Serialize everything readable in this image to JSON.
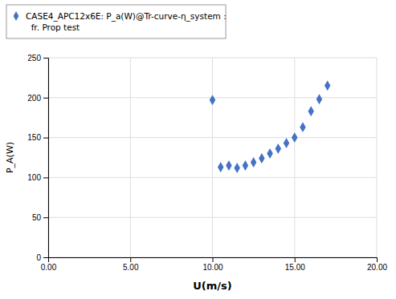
{
  "chart_data": {
    "type": "scatter",
    "x": [
      10.0,
      10.5,
      11.0,
      11.5,
      12.0,
      12.5,
      13.0,
      13.5,
      14.0,
      14.5,
      15.0,
      15.5,
      16.0,
      16.5,
      17.0
    ],
    "series": [
      {
        "name": "CASE4_APC12x6E: P_a(W)@Tr-curve-η_system :\n  fr. Prop test",
        "color": "#4472C4",
        "marker": "diamond",
        "values": [
          197.0,
          113.0,
          115.0,
          112.0,
          115.0,
          119.0,
          124.0,
          130.0,
          136.0,
          143.0,
          150.0,
          163.0,
          183.0,
          198.0,
          215.0
        ]
      }
    ],
    "x_label": "U(m/s)",
    "y_label": "P_A(W)",
    "xlim": [
      0.0,
      20.0
    ],
    "ylim": [
      0,
      250
    ],
    "xticks": [
      {
        "value": 0.0,
        "label": "0.00"
      },
      {
        "value": 5.0,
        "label": "5.00"
      },
      {
        "value": 10.0,
        "label": "10.00"
      },
      {
        "value": 15.0,
        "label": "15.00"
      },
      {
        "value": 20.0,
        "label": "20.00"
      }
    ],
    "yticks": [
      0,
      50,
      100,
      150,
      200,
      250
    ],
    "grid": true,
    "legend": "upper left"
  }
}
